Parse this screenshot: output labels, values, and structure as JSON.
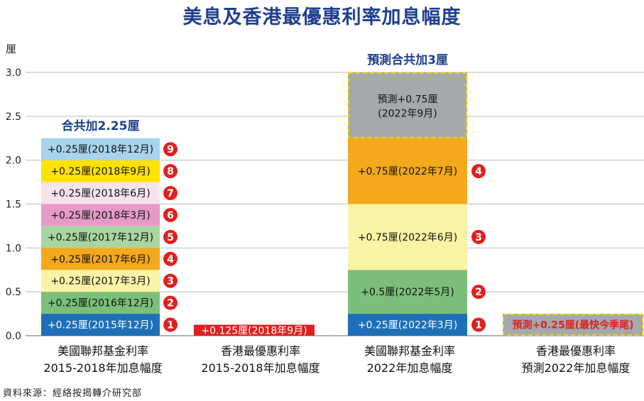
{
  "title": "美息及香港最優惠利率加息幅度",
  "source": "資料來源：經絡按揭轉介研究部",
  "colors": {
    "navy": "#1f3f8f",
    "grid": "#bbbbbb",
    "badge": "#e02020"
  },
  "chart_data": {
    "type": "bar",
    "stacked": true,
    "yunit": "厘",
    "ylim": [
      0,
      3.0
    ],
    "yticks": [
      "0.0",
      "0.5",
      "1.0",
      "1.5",
      "2.0",
      "2.5",
      "3.0"
    ],
    "grid": true,
    "categories": [
      {
        "line1": "美國聯邦基金利率",
        "line2": "2015-2018年加息幅度",
        "total_label": "合共加2.25厘"
      },
      {
        "line1": "香港最優惠利率",
        "line2": "2015-2018年加息幅度",
        "total_label": ""
      },
      {
        "line1": "美國聯邦基金利率",
        "line2": "2022年加息幅度",
        "total_label": "預測合共加3厘"
      },
      {
        "line1": "香港最優惠利率",
        "line2": "預測2022年加息幅度",
        "total_label": ""
      }
    ],
    "series": [
      {
        "category": 0,
        "segments": [
          {
            "value": 0.25,
            "label": "+0.25厘(2015年12月)",
            "badge": "1",
            "color": "#1d6fb8",
            "text_color": "#ffffff"
          },
          {
            "value": 0.25,
            "label": "+0.25厘(2016年12月)",
            "badge": "2",
            "color": "#7bbf7b",
            "text_color": "#111111"
          },
          {
            "value": 0.25,
            "label": "+0.25厘(2017年3月)",
            "badge": "3",
            "color": "#fbf3a6",
            "text_color": "#111111"
          },
          {
            "value": 0.25,
            "label": "+0.25厘(2017年6月)",
            "badge": "4",
            "color": "#f4a81c",
            "text_color": "#111111"
          },
          {
            "value": 0.25,
            "label": "+0.25厘(2017年12月)",
            "badge": "5",
            "color": "#a9d5a0",
            "text_color": "#111111"
          },
          {
            "value": 0.25,
            "label": "+0.25厘(2018年3月)",
            "badge": "6",
            "color": "#e69ac8",
            "text_color": "#111111"
          },
          {
            "value": 0.25,
            "label": "+0.25厘(2018年6月)",
            "badge": "7",
            "color": "#f6e3ee",
            "text_color": "#111111"
          },
          {
            "value": 0.25,
            "label": "+0.25厘(2018年9月)",
            "badge": "8",
            "color": "#ffe200",
            "text_color": "#111111"
          },
          {
            "value": 0.25,
            "label": "+0.25厘(2018年12月)",
            "badge": "9",
            "color": "#a7d3ec",
            "text_color": "#111111"
          }
        ]
      },
      {
        "category": 1,
        "segments": [
          {
            "value": 0.125,
            "label": "+0.125厘(2018年9月)",
            "badge": "",
            "color": "#e02020",
            "text_color": "#ffffff"
          }
        ]
      },
      {
        "category": 2,
        "segments": [
          {
            "value": 0.25,
            "label": "+0.25厘(2022年3月)",
            "badge": "1",
            "color": "#1d6fb8",
            "text_color": "#ffffff"
          },
          {
            "value": 0.5,
            "label": "+0.5厘(2022年5月)",
            "badge": "2",
            "color": "#7bbf7b",
            "text_color": "#111111"
          },
          {
            "value": 0.75,
            "label": "+0.75厘(2022年6月)",
            "badge": "3",
            "color": "#fbf3a6",
            "text_color": "#111111"
          },
          {
            "value": 0.75,
            "label": "+0.75厘(2022年7月)",
            "badge": "4",
            "color": "#f4a81c",
            "text_color": "#111111"
          },
          {
            "value": 0.75,
            "label": "預測+0.75厘",
            "label2": "(2022年9月)",
            "badge": "",
            "color": "#a4a9ac",
            "text_color": "#111111",
            "forecast": true
          }
        ]
      },
      {
        "category": 3,
        "segments": [
          {
            "value": 0.25,
            "label": "預測+0.25厘(最快今季尾)",
            "badge": "",
            "color": "#a4a9ac",
            "text_color": "#e02020",
            "forecast": true
          }
        ]
      }
    ]
  }
}
